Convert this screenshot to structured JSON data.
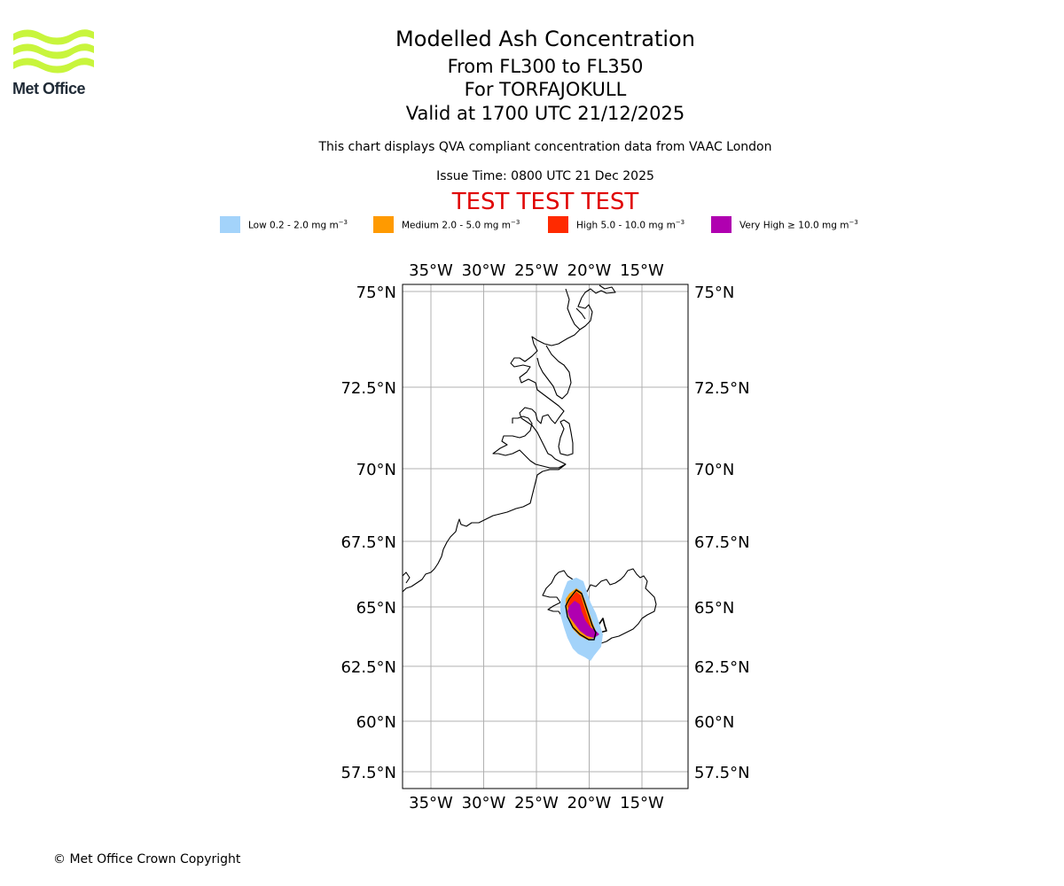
{
  "logo": {
    "text": "Met Office",
    "color": "#c8f53c",
    "text_color": "#1f2a36"
  },
  "header": {
    "title": "Modelled Ash Concentration",
    "flight_levels": "From FL300 to FL350",
    "volcano": "For TORFAJOKULL",
    "valid_time": "Valid at 1700 UTC 21/12/2025",
    "description": "This chart displays QVA compliant concentration data from VAAC London",
    "issue_time": "Issue Time: 0800 UTC 21 Dec 2025",
    "test_banner": "TEST TEST TEST"
  },
  "legend": [
    {
      "label": "Low 0.2 - 2.0 mg m",
      "color": "#a3d3fa"
    },
    {
      "label": "Medium 2.0 - 5.0 mg m",
      "color": "#ff9a00"
    },
    {
      "label": "High 5.0 - 10.0 mg m",
      "color": "#ff2a00"
    },
    {
      "label": "Very High ≥ 10.0 mg m",
      "color": "#b000b0"
    }
  ],
  "legend_unit_exponent": "−3",
  "map": {
    "lon_labels": [
      "35°W",
      "30°W",
      "25°W",
      "20°W",
      "15°W"
    ],
    "lat_labels": [
      "75°N",
      "72.5°N",
      "70°N",
      "67.5°N",
      "65°N",
      "62.5°N",
      "60°N",
      "57.5°N"
    ],
    "lon_values": [
      -35,
      -30,
      -25,
      -20,
      -15
    ],
    "lat_values": [
      75,
      72.5,
      70,
      67.5,
      65,
      62.5,
      60,
      57.5
    ],
    "grid_color": "#b0b0b0"
  },
  "footer": {
    "copyright": "© Met Office Crown Copyright"
  }
}
